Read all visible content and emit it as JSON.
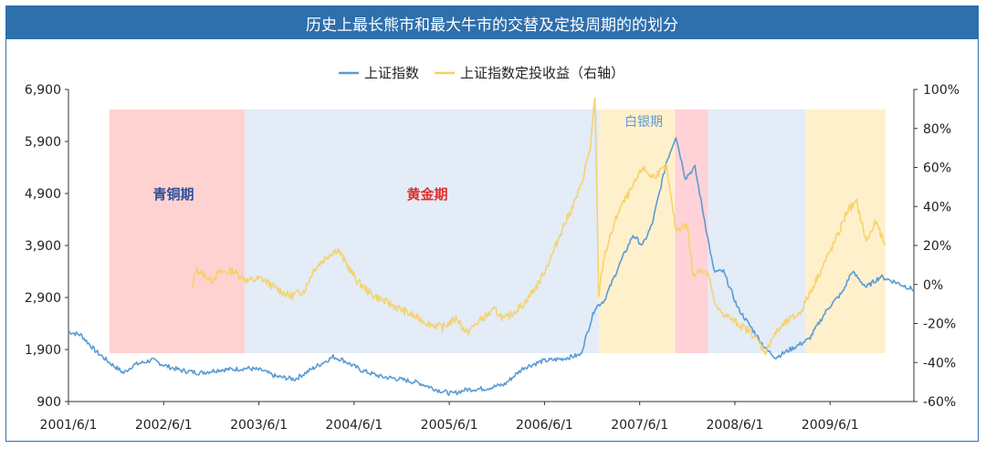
{
  "title": "历史上最长熊市和最大牛市的交替及定投周期的的划分",
  "chart_data": {
    "type": "line",
    "legend": [
      {
        "name": "上证指数",
        "color": "#5b9bd5"
      },
      {
        "name": "上证指数定投收益（右轴）",
        "color": "#f5d061"
      }
    ],
    "x_ticks": [
      "2001/6/1",
      "2002/6/1",
      "2003/6/1",
      "2004/6/1",
      "2005/6/1",
      "2006/6/1",
      "2007/6/1",
      "2008/6/1",
      "2009/6/1"
    ],
    "x_tick_years": [
      2001.42,
      2002.42,
      2003.42,
      2004.42,
      2005.42,
      2006.42,
      2007.42,
      2008.42,
      2009.42
    ],
    "x_range": [
      2001.42,
      2010.3
    ],
    "y_left": {
      "min": 900,
      "max": 6900,
      "ticks": [
        "900",
        "1,900",
        "2,900",
        "3,900",
        "4,900",
        "5,900",
        "6,900"
      ],
      "tick_values": [
        900,
        1900,
        2900,
        3900,
        4900,
        5900,
        6900
      ]
    },
    "y_right": {
      "min": -60,
      "max": 100,
      "ticks": [
        "-60%",
        "-40%",
        "-20%",
        "0%",
        "20%",
        "40%",
        "60%",
        "80%",
        "100%"
      ],
      "tick_values": [
        -60,
        -40,
        -20,
        0,
        20,
        40,
        60,
        80,
        100
      ]
    },
    "periods": [
      {
        "label": "青铜期",
        "start": 2001.85,
        "end": 2003.27,
        "color": "#ffd2d2",
        "label_color": "#2f4f9a"
      },
      {
        "label": "黄金期",
        "start": 2003.27,
        "end": 2006.99,
        "color": "#e3ecf7",
        "label_color": "#e0302a"
      },
      {
        "label": "白银期",
        "start": 2006.99,
        "end": 2007.79,
        "color": "#fff0cc",
        "label_color": "#5b9bd5"
      },
      {
        "label": "",
        "start": 2007.79,
        "end": 2008.14,
        "color": "#ffd2d8",
        "label_color": ""
      },
      {
        "label": "",
        "start": 2008.14,
        "end": 2009.16,
        "color": "#e3ecf7",
        "label_color": ""
      },
      {
        "label": "",
        "start": 2009.16,
        "end": 2010.0,
        "color": "#fff0cc",
        "label_color": ""
      }
    ],
    "series": [
      {
        "name": "上证指数",
        "axis": "left",
        "x": [
          2001.42,
          2001.55,
          2001.7,
          2001.85,
          2002.0,
          2002.1,
          2002.3,
          2002.45,
          2002.6,
          2002.8,
          2003.0,
          2003.15,
          2003.3,
          2003.45,
          2003.6,
          2003.8,
          2004.0,
          2004.2,
          2004.3,
          2004.5,
          2004.7,
          2004.9,
          2005.1,
          2005.3,
          2005.45,
          2005.6,
          2005.8,
          2006.0,
          2006.2,
          2006.4,
          2006.6,
          2006.8,
          2006.95,
          2007.05,
          2007.2,
          2007.35,
          2007.45,
          2007.55,
          2007.7,
          2007.8,
          2007.9,
          2008.0,
          2008.1,
          2008.2,
          2008.3,
          2008.45,
          2008.6,
          2008.75,
          2008.85,
          2009.0,
          2009.2,
          2009.4,
          2009.55,
          2009.65,
          2009.8,
          2009.95,
          2010.1,
          2010.3
        ],
        "values": [
          2240,
          2180,
          1880,
          1650,
          1450,
          1600,
          1700,
          1580,
          1500,
          1450,
          1510,
          1520,
          1540,
          1500,
          1380,
          1330,
          1550,
          1760,
          1700,
          1500,
          1380,
          1330,
          1260,
          1120,
          1050,
          1130,
          1150,
          1230,
          1550,
          1680,
          1720,
          1800,
          2700,
          2850,
          3500,
          4100,
          3900,
          4300,
          5500,
          6000,
          5200,
          5400,
          4400,
          3400,
          3400,
          2700,
          2300,
          1900,
          1750,
          1900,
          2100,
          2700,
          3000,
          3400,
          3100,
          3300,
          3200,
          3050
        ]
      },
      {
        "name": "上证指数定投收益（右轴）",
        "axis": "right",
        "x": [
          2002.72,
          2002.76,
          2002.84,
          2002.92,
          2003.0,
          2003.15,
          2003.3,
          2003.45,
          2003.6,
          2003.75,
          2003.9,
          2004.0,
          2004.15,
          2004.25,
          2004.32,
          2004.45,
          2004.6,
          2004.8,
          2005.0,
          2005.2,
          2005.35,
          2005.5,
          2005.6,
          2005.75,
          2005.9,
          2006.0,
          2006.2,
          2006.35,
          2006.5,
          2006.6,
          2006.7,
          2006.8,
          2006.9,
          2006.95,
          2006.99,
          2007.05,
          2007.2,
          2007.35,
          2007.45,
          2007.55,
          2007.7,
          2007.8,
          2007.88,
          2007.92,
          2007.98,
          2008.05,
          2008.14,
          2008.22,
          2008.3,
          2008.45,
          2008.6,
          2008.75,
          2008.8,
          2008.9,
          2009.0,
          2009.1,
          2009.2,
          2009.35,
          2009.5,
          2009.6,
          2009.7,
          2009.8,
          2009.9,
          2010.0
        ],
        "values": [
          -3,
          8,
          5,
          2,
          6,
          7,
          2,
          3,
          -2,
          -6,
          -3,
          8,
          15,
          18,
          12,
          2,
          -5,
          -10,
          -15,
          -20,
          -22,
          -17,
          -25,
          -18,
          -13,
          -18,
          -10,
          0,
          15,
          28,
          38,
          50,
          70,
          95,
          -5,
          15,
          38,
          50,
          60,
          55,
          60,
          28,
          30,
          30,
          5,
          8,
          5,
          -12,
          -15,
          -20,
          -25,
          -35,
          -28,
          -22,
          -18,
          -15,
          -5,
          10,
          25,
          38,
          42,
          22,
          32,
          20
        ]
      }
    ]
  }
}
